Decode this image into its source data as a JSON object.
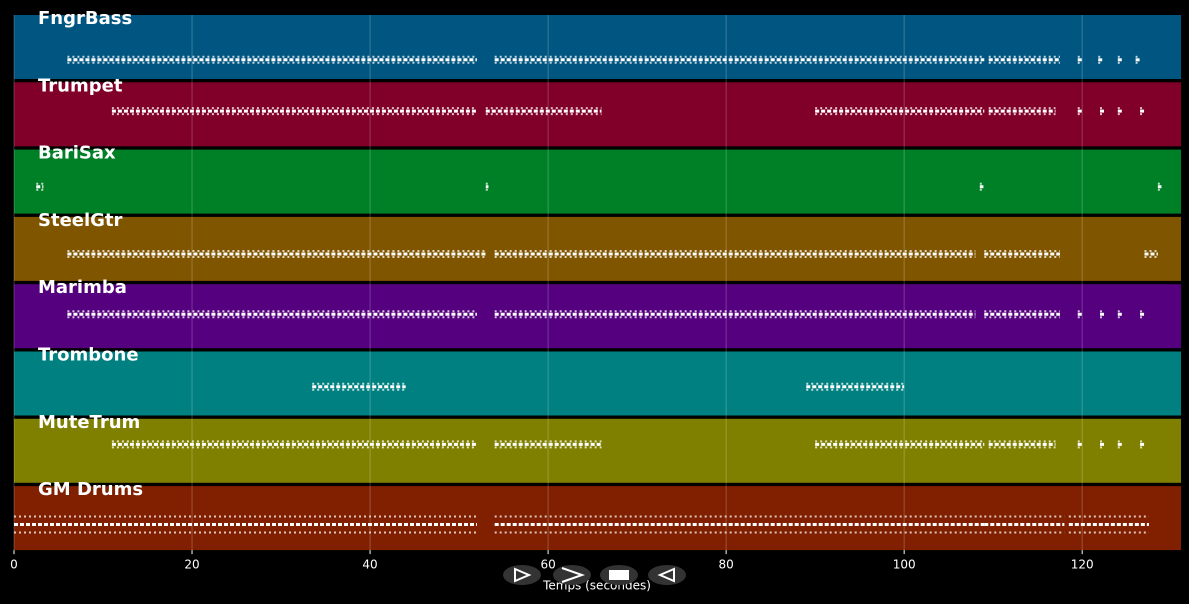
{
  "chart_data": {
    "type": "pianoroll",
    "x_label": "Temps (secondes)",
    "xlim": [
      0,
      131.1
    ],
    "xticks": [
      0,
      20,
      40,
      60,
      80,
      100,
      120
    ],
    "grid": true,
    "tracks": [
      {
        "name": "FngrBass",
        "color": "#005680",
        "phrases": [
          [
            6,
            52
          ],
          [
            54,
            109
          ],
          [
            109.5,
            117.5
          ],
          [
            119.5,
            120
          ],
          [
            121.8,
            122.3
          ],
          [
            124,
            124.5
          ],
          [
            126,
            126.5
          ]
        ]
      },
      {
        "name": "Trumpet",
        "color": "#80002a",
        "phrases": [
          [
            11,
            52
          ],
          [
            53,
            66
          ],
          [
            90,
            109
          ],
          [
            109.5,
            117
          ],
          [
            119.5,
            120
          ],
          [
            122,
            122.5
          ],
          [
            124,
            124.5
          ],
          [
            126.5,
            127
          ]
        ]
      },
      {
        "name": "BariSax",
        "color": "#008026",
        "phrases": [
          [
            2.5,
            3.3
          ],
          [
            53,
            53.3
          ],
          [
            108.5,
            108.9
          ],
          [
            128.5,
            128.9
          ]
        ]
      },
      {
        "name": "SteelGtr",
        "color": "#805500",
        "phrases": [
          [
            6,
            53
          ],
          [
            54,
            108
          ],
          [
            109,
            117.5
          ],
          [
            127,
            128.5
          ]
        ]
      },
      {
        "name": "Marimba",
        "color": "#55007f",
        "phrases": [
          [
            6,
            52
          ],
          [
            54,
            108
          ],
          [
            109,
            117.5
          ],
          [
            119.5,
            120
          ],
          [
            122,
            122.5
          ],
          [
            124,
            124.5
          ],
          [
            126.5,
            127
          ]
        ]
      },
      {
        "name": "Trombone",
        "color": "#008080",
        "phrases": [
          [
            33.5,
            44
          ],
          [
            89,
            100
          ]
        ]
      },
      {
        "name": "MuteTrum",
        "color": "#808000",
        "phrases": [
          [
            11,
            52
          ],
          [
            54,
            66
          ],
          [
            90,
            109
          ],
          [
            109.5,
            117
          ],
          [
            119.5,
            120
          ],
          [
            122,
            122.5
          ],
          [
            124,
            124.5
          ],
          [
            126.5,
            127
          ]
        ]
      },
      {
        "name": "GM Drums",
        "color": "#802000",
        "phrases": [
          [
            0,
            52
          ],
          [
            54,
            109
          ],
          [
            109,
            118
          ],
          [
            118.5,
            127.5
          ]
        ]
      }
    ]
  }
}
